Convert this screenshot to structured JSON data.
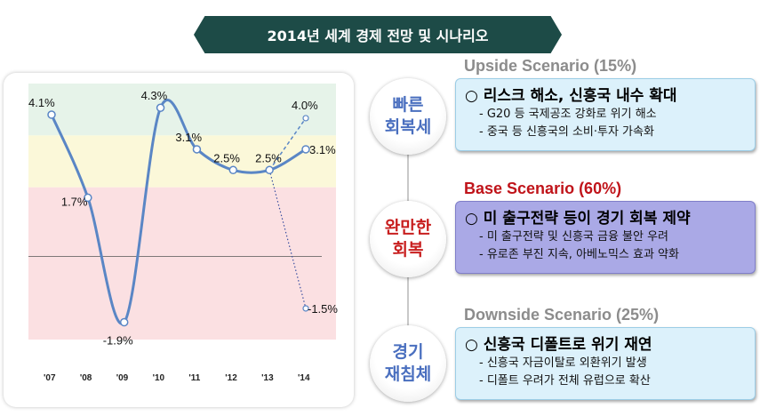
{
  "page_title": "2014년 세계 경제 전망 및 시나리오",
  "chart_data": {
    "type": "line",
    "categories": [
      "'07",
      "'08",
      "'09",
      "'10",
      "'11",
      "'12",
      "'13",
      "'14"
    ],
    "series": [
      {
        "values": [
          4.1,
          1.7,
          -1.9,
          4.3,
          3.1,
          2.5,
          2.5,
          3.1
        ]
      }
    ],
    "scenario_points": [
      {
        "x": "'14",
        "from": 2.5,
        "value": 4.0,
        "label": "4.0%"
      },
      {
        "x": "'14",
        "from": 2.5,
        "value": -1.5,
        "label": "-1.5%"
      }
    ],
    "data_labels": [
      "4.1%",
      "1.7%",
      "-1.9%",
      "4.3%",
      "3.1%",
      "2.5%",
      "2.5%",
      "3.1%"
    ],
    "ylim": [
      -2.4,
      5.0
    ],
    "bands": [
      {
        "from": 3.5,
        "to": 5.0,
        "color": "#e6f3e9"
      },
      {
        "from": 2.0,
        "to": 3.5,
        "color": "#fbf8d9"
      },
      {
        "from": -2.4,
        "to": 2.0,
        "color": "#fbe0e2"
      }
    ],
    "zero_line": 0,
    "line_color": "#5a86c5",
    "title": "",
    "xlabel": "",
    "ylabel": ""
  },
  "scenarios": [
    {
      "circle_label": "빠른\n회복세",
      "circle_color": "#4a6fbf",
      "heading": "Upside Scenario (15%)",
      "heading_color": "#8c8c8c",
      "headline": "○ 리스크 해소, 신흥국 내수 확대",
      "bullets": [
        "- G20 등 국제공조 강화로 위기 해소",
        "- 중국 등 신흥국의 소비·투자 가속화"
      ],
      "box_color": "#dcf1fb",
      "box_border": "#9ccde6"
    },
    {
      "circle_label": "완만한\n회복",
      "circle_color": "#c81e1e",
      "heading": "Base Scenario (60%)",
      "heading_color": "#c0141a",
      "headline": "○ 미 출구전략 등이 경기 회복 제약",
      "bullets": [
        "- 미 출구전략 및 신흥국 금융 불안 우려",
        "- 유로존 부진 지속, 아베노믹스 효과 약화"
      ],
      "box_color": "#aaa9e6",
      "box_border": "#7f7ec9"
    },
    {
      "circle_label": "경기\n재침체",
      "circle_color": "#4a6fbf",
      "heading": "Downside Scenario (25%)",
      "heading_color": "#8c8c8c",
      "headline": "○ 신흥국 디폴트로 위기 재연",
      "bullets": [
        "- 신흥국 자금이탈로 외환위기 발생",
        "- 디폴트 우려가 전체 유럽으로 확산"
      ],
      "box_color": "#dcf1fb",
      "box_border": "#9ccde6"
    }
  ]
}
